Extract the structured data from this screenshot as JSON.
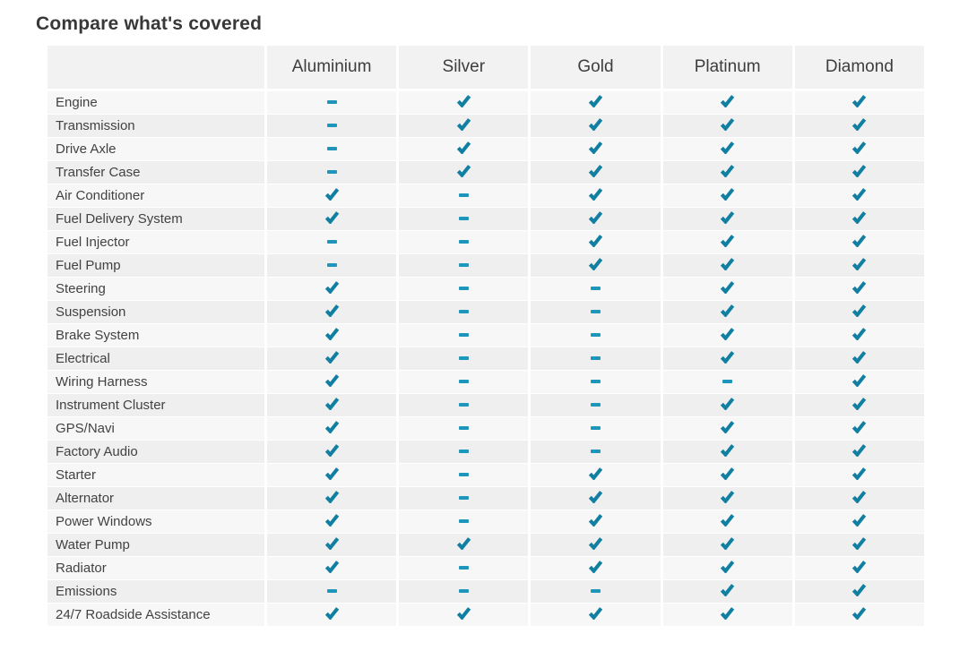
{
  "page": {
    "title": "Compare what's covered"
  },
  "colors": {
    "check": "#107fa1",
    "dash": "#1e95ba",
    "header_bg": "#f2f2f2",
    "row_odd_bg": "#f7f7f7",
    "row_even_bg": "#efefef",
    "title_text": "#383838",
    "label_text": "#424242"
  },
  "table": {
    "corner_label": "",
    "plans": [
      "Aluminium",
      "Silver",
      "Gold",
      "Platinum",
      "Diamond"
    ],
    "rows": [
      {
        "label": "Engine",
        "covered": [
          false,
          true,
          true,
          true,
          true
        ]
      },
      {
        "label": "Transmission",
        "covered": [
          false,
          true,
          true,
          true,
          true
        ]
      },
      {
        "label": "Drive Axle",
        "covered": [
          false,
          true,
          true,
          true,
          true
        ]
      },
      {
        "label": "Transfer Case",
        "covered": [
          false,
          true,
          true,
          true,
          true
        ]
      },
      {
        "label": "Air Conditioner",
        "covered": [
          true,
          false,
          true,
          true,
          true
        ]
      },
      {
        "label": "Fuel Delivery System",
        "covered": [
          true,
          false,
          true,
          true,
          true
        ]
      },
      {
        "label": "Fuel Injector",
        "covered": [
          false,
          false,
          true,
          true,
          true
        ]
      },
      {
        "label": "Fuel Pump",
        "covered": [
          false,
          false,
          true,
          true,
          true
        ]
      },
      {
        "label": "Steering",
        "covered": [
          true,
          false,
          false,
          true,
          true
        ]
      },
      {
        "label": "Suspension",
        "covered": [
          true,
          false,
          false,
          true,
          true
        ]
      },
      {
        "label": "Brake System",
        "covered": [
          true,
          false,
          false,
          true,
          true
        ]
      },
      {
        "label": "Electrical",
        "covered": [
          true,
          false,
          false,
          true,
          true
        ]
      },
      {
        "label": "Wiring Harness",
        "covered": [
          true,
          false,
          false,
          false,
          true
        ]
      },
      {
        "label": "Instrument Cluster",
        "covered": [
          true,
          false,
          false,
          true,
          true
        ]
      },
      {
        "label": "GPS/Navi",
        "covered": [
          true,
          false,
          false,
          true,
          true
        ]
      },
      {
        "label": "Factory Audio",
        "covered": [
          true,
          false,
          false,
          true,
          true
        ]
      },
      {
        "label": "Starter",
        "covered": [
          true,
          false,
          true,
          true,
          true
        ]
      },
      {
        "label": "Alternator",
        "covered": [
          true,
          false,
          true,
          true,
          true
        ]
      },
      {
        "label": "Power Windows",
        "covered": [
          true,
          false,
          true,
          true,
          true
        ]
      },
      {
        "label": "Water Pump",
        "covered": [
          true,
          true,
          true,
          true,
          true
        ]
      },
      {
        "label": "Radiator",
        "covered": [
          true,
          false,
          true,
          true,
          true
        ]
      },
      {
        "label": "Emissions",
        "covered": [
          false,
          false,
          false,
          true,
          true
        ]
      },
      {
        "label": "24/7 Roadside Assistance",
        "covered": [
          true,
          true,
          true,
          true,
          true
        ]
      }
    ],
    "icons": {
      "covered_icon": "check-icon",
      "not_covered_icon": "dash-icon"
    }
  }
}
